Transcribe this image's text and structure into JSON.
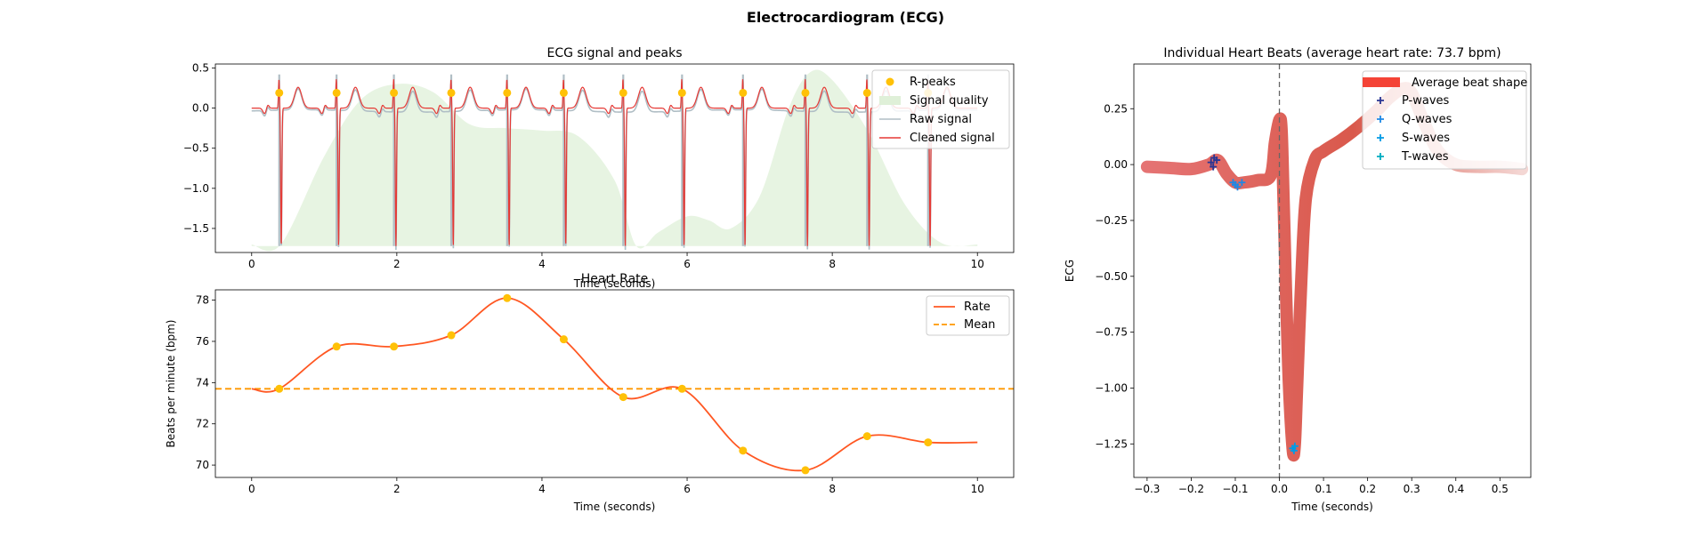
{
  "figure": {
    "suptitle": "Electrocardiogram (ECG)"
  },
  "chart_data": [
    {
      "type": "line",
      "title": "ECG signal and peaks",
      "xlabel": "Time (seconds)",
      "ylabel": "",
      "xlim": [
        -0.5,
        10.5
      ],
      "ylim": [
        -1.8,
        0.55
      ],
      "xticks": [
        0,
        2,
        4,
        6,
        8,
        10
      ],
      "yticks": [
        0.5,
        0.0,
        -0.5,
        -1.0,
        -1.5
      ],
      "ytick_labels": [
        "0.5",
        "0.0",
        "−0.5",
        "−1.0",
        "−1.5"
      ],
      "r_peak_times": [
        0.38,
        1.17,
        1.96,
        2.75,
        3.52,
        4.3,
        5.12,
        5.93,
        6.77,
        7.63,
        8.48,
        9.32
      ],
      "r_peak_value": 0.19,
      "s_trough_value": -1.72,
      "quality_curve": {
        "x": [
          0.0,
          0.4,
          1.0,
          1.5,
          2.0,
          2.5,
          3.0,
          3.5,
          4.0,
          4.5,
          5.0,
          5.3,
          5.6,
          6.0,
          6.3,
          6.6,
          7.0,
          7.4,
          7.7,
          8.0,
          8.5,
          9.0,
          9.5,
          10.0
        ],
        "y": [
          -1.7,
          -1.7,
          -0.6,
          0.1,
          0.3,
          0.2,
          -0.2,
          -0.25,
          -0.28,
          -0.35,
          -0.9,
          -1.72,
          -1.55,
          -1.35,
          -1.4,
          -1.5,
          -1.1,
          0.0,
          0.45,
          0.35,
          -0.3,
          -1.2,
          -1.68,
          -1.7
        ]
      },
      "legend": {
        "location": "top-right",
        "entries": [
          {
            "label": "R-peaks",
            "color": "#FFC107",
            "kind": "marker"
          },
          {
            "label": "Signal quality",
            "color": "#DFF0D8",
            "kind": "area"
          },
          {
            "label": "Raw signal",
            "color": "#B0BEC5",
            "kind": "line"
          },
          {
            "label": "Cleaned signal",
            "color": "#E53935",
            "kind": "line"
          }
        ]
      }
    },
    {
      "type": "line",
      "title": "Heart Rate",
      "xlabel": "Time (seconds)",
      "ylabel": "Beats per minute (bpm)",
      "xlim": [
        -0.5,
        10.5
      ],
      "ylim": [
        69.4,
        78.5
      ],
      "xticks": [
        0,
        2,
        4,
        6,
        8,
        10
      ],
      "yticks": [
        70,
        72,
        74,
        76,
        78
      ],
      "series": [
        {
          "name": "Rate",
          "color": "#FF5722",
          "x": [
            0.0,
            0.38,
            1.17,
            1.96,
            2.75,
            3.52,
            4.3,
            5.12,
            5.93,
            6.77,
            7.63,
            8.48,
            9.32,
            10.0
          ],
          "y": [
            73.7,
            73.7,
            75.75,
            75.75,
            76.3,
            78.1,
            76.1,
            73.3,
            73.7,
            70.7,
            69.75,
            71.4,
            71.1,
            71.1
          ]
        }
      ],
      "markers": {
        "color": "#FFC107",
        "x": [
          0.38,
          1.17,
          1.96,
          2.75,
          3.52,
          4.3,
          5.12,
          5.93,
          6.77,
          7.63,
          8.48,
          9.32
        ],
        "y": [
          73.7,
          75.75,
          75.75,
          76.3,
          78.1,
          76.1,
          73.3,
          73.7,
          70.7,
          69.75,
          71.4,
          71.1
        ]
      },
      "mean": {
        "name": "Mean",
        "value": 73.7,
        "color": "#FF9800"
      },
      "legend": {
        "location": "top-right",
        "entries": [
          {
            "label": "Rate",
            "color": "#FF5722",
            "kind": "line"
          },
          {
            "label": "Mean",
            "color": "#FF9800",
            "kind": "dashed"
          }
        ]
      }
    },
    {
      "type": "line",
      "title": "Individual Heart Beats (average heart rate: 73.7 bpm)",
      "xlabel": "Time (seconds)",
      "ylabel": "ECG",
      "xlim": [
        -0.33,
        0.57
      ],
      "ylim": [
        -1.4,
        0.45
      ],
      "xticks": [
        -0.3,
        -0.2,
        -0.1,
        0.0,
        0.1,
        0.2,
        0.3,
        0.4,
        0.5
      ],
      "xtick_labels": [
        "−0.3",
        "−0.2",
        "−0.1",
        "0.0",
        "0.1",
        "0.2",
        "0.3",
        "0.4",
        "0.5"
      ],
      "yticks": [
        0.25,
        0.0,
        -0.25,
        -0.5,
        -0.75,
        -1.0,
        -1.25
      ],
      "ytick_labels": [
        "0.25",
        "0.00",
        "−0.25",
        "−0.50",
        "−0.75",
        "−1.00",
        "−1.25"
      ],
      "vline_x": 0.0,
      "average_beat": {
        "name": "Average beat shape",
        "color": "#F44336",
        "x": [
          -0.3,
          -0.25,
          -0.2,
          -0.16,
          -0.14,
          -0.12,
          -0.1,
          -0.08,
          -0.05,
          -0.02,
          -0.01,
          0.0,
          0.005,
          0.01,
          0.02,
          0.03,
          0.035,
          0.04,
          0.05,
          0.06,
          0.08,
          0.1,
          0.14,
          0.18,
          0.22,
          0.25,
          0.28,
          0.3,
          0.33,
          0.36,
          0.4,
          0.45,
          0.5,
          0.55
        ],
        "y": [
          -0.01,
          -0.015,
          -0.02,
          0.0,
          0.02,
          -0.04,
          -0.08,
          -0.08,
          -0.07,
          -0.05,
          0.1,
          0.2,
          0.15,
          -0.2,
          -0.9,
          -1.27,
          -1.25,
          -1.0,
          -0.5,
          -0.15,
          0.02,
          0.06,
          0.11,
          0.17,
          0.24,
          0.3,
          0.34,
          0.32,
          0.18,
          0.06,
          0.0,
          -0.01,
          -0.01,
          -0.02
        ]
      },
      "waves": [
        {
          "name": "P-waves",
          "color": "#283593",
          "x": [
            -0.155,
            -0.148,
            -0.142,
            -0.15
          ],
          "y": [
            0.01,
            0.03,
            0.02,
            -0.01
          ]
        },
        {
          "name": "Q-waves",
          "color": "#1E88E5",
          "x": [
            -0.105,
            -0.1,
            -0.095,
            -0.085
          ],
          "y": [
            -0.08,
            -0.09,
            -0.1,
            -0.08
          ]
        },
        {
          "name": "S-waves",
          "color": "#039BE5",
          "x": [
            0.03,
            0.033,
            0.035
          ],
          "y": [
            -1.27,
            -1.28,
            -1.26
          ]
        },
        {
          "name": "T-waves",
          "color": "#00ACC1",
          "x": [],
          "y": []
        }
      ],
      "legend": {
        "location": "top-right"
      }
    }
  ]
}
